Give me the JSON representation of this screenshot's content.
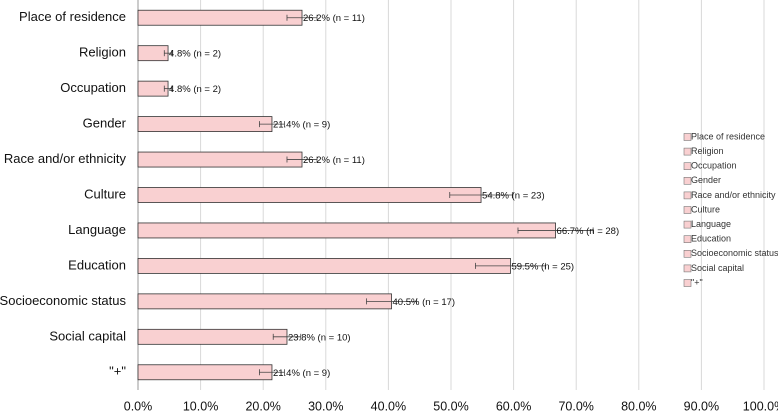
{
  "chart_data": {
    "type": "bar",
    "orientation": "horizontal",
    "categories": [
      "Place of residence",
      "Religion",
      "Occupation",
      "Gender",
      "Race and/or ethnicity",
      "Culture",
      "Language",
      "Education",
      "Socioeconomic status",
      "Social capital",
      "\"+\""
    ],
    "values": [
      26.2,
      4.8,
      4.8,
      21.4,
      26.2,
      54.8,
      66.7,
      59.5,
      40.5,
      23.8,
      21.4
    ],
    "value_labels": [
      "26.2% (n = 11)",
      "4.8% (n = 2)",
      "4.8% (n = 2)",
      "21.4% (n = 9)",
      "26.2% (n = 11)",
      "54.8% (n = 23)",
      "66.7% (n = 28)",
      "59.5% (n = 25)",
      "40.5% (n = 17)",
      "23.8% (n = 10)",
      "21.4% (n = 9)"
    ],
    "errors": [
      2.4,
      0.6,
      0.6,
      2,
      2.4,
      5,
      6,
      5.6,
      4,
      2.2,
      2
    ],
    "color": "#f9d0d1",
    "xlim": [
      0,
      100
    ],
    "xticks": [
      {
        "value": 0,
        "label": "0.0%"
      },
      {
        "value": 10,
        "label": "10.0%"
      },
      {
        "value": 20,
        "label": "20.0%"
      },
      {
        "value": 30,
        "label": "30.0%"
      },
      {
        "value": 40,
        "label": "40.0%"
      },
      {
        "value": 50,
        "label": "50.0%"
      },
      {
        "value": 60,
        "label": "60.0%"
      },
      {
        "value": 70,
        "label": "70.0%"
      },
      {
        "value": 80,
        "label": "80.0%"
      },
      {
        "value": 90,
        "label": "90.0%"
      },
      {
        "value": 100,
        "label": "100.0%"
      }
    ],
    "grid": true,
    "legend": "right"
  }
}
